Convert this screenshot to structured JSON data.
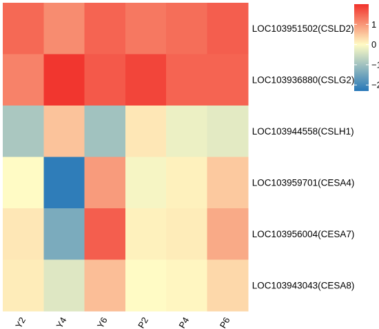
{
  "chart_data": {
    "type": "heatmap",
    "columns": [
      "Y2",
      "Y4",
      "Y6",
      "P2",
      "P4",
      "P6"
    ],
    "rows": [
      "LOC103951502(CSLD2)",
      "LOC103936880(CSLG2)",
      "LOC103944558(CSLH1)",
      "LOC103959701(CESA4)",
      "LOC103956004(CESA7)",
      "LOC103943043(CESA8)"
    ],
    "values": [
      [
        1.45,
        1.1,
        1.5,
        1.3,
        1.4,
        1.55
      ],
      [
        1.2,
        1.95,
        1.6,
        1.8,
        1.5,
        1.5
      ],
      [
        -0.9,
        0.55,
        -1.0,
        0.2,
        -0.2,
        -0.3
      ],
      [
        0.0,
        -2.2,
        0.95,
        -0.1,
        0.1,
        0.5
      ],
      [
        0.2,
        -1.4,
        1.55,
        0.1,
        0.15,
        0.8
      ],
      [
        0.15,
        -0.35,
        0.6,
        0.0,
        0.05,
        0.35
      ]
    ],
    "legend": {
      "min": -2.3,
      "max": 2.0,
      "ticks": [
        1,
        0,
        -1,
        -2
      ],
      "tick_labels": [
        "1",
        "0",
        "−1",
        "−2"
      ],
      "colors": {
        "low": "#2677b8",
        "mid": "#fffbc5",
        "high": "#f1312b"
      },
      "position": "top-right"
    }
  }
}
